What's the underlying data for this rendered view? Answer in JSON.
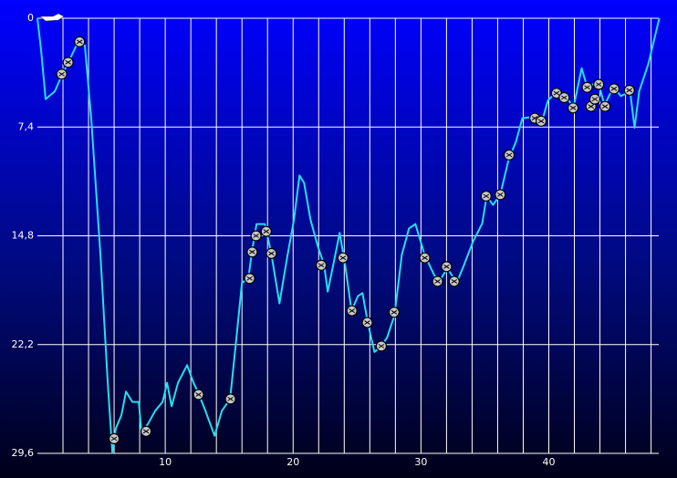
{
  "chart_data": {
    "type": "line",
    "color": "#22e0f0",
    "marker_color": "#c8c8c8",
    "grid": true,
    "y_inverted": true,
    "xlim": [
      0,
      48.6
    ],
    "ylim": [
      0,
      29.6
    ],
    "xticks": [
      10,
      20,
      30,
      40
    ],
    "xgrid": [
      2,
      4,
      6,
      8,
      10,
      12,
      14,
      16,
      18,
      20,
      22,
      24,
      26,
      28,
      30,
      32,
      34,
      36,
      38,
      40,
      42,
      44,
      46,
      48
    ],
    "yticks": [
      0,
      {
        "value": 7.4,
        "label": "7,4"
      },
      {
        "value": 14.8,
        "label": "14,8"
      },
      {
        "value": 22.2,
        "label": "22,2"
      },
      {
        "value": 29.6,
        "label": "29,6"
      }
    ],
    "x": [
      0,
      0.29,
      0.64,
      1.36,
      1.93,
      2.43,
      3.21,
      3.71,
      4.21,
      4.93,
      5.5,
      5.86,
      6.14,
      6.57,
      6.93,
      7.43,
      7.93,
      8.14,
      8.64,
      9.21,
      9.79,
      10.14,
      10.5,
      11.0,
      11.71,
      12.21,
      12.64,
      13.14,
      13.86,
      14.43,
      15.07,
      15.5,
      16.0,
      16.5,
      16.79,
      17.14,
      17.79,
      18.29,
      18.93,
      19.57,
      20.07,
      20.5,
      20.86,
      21.36,
      21.93,
      22.43,
      22.71,
      23.14,
      23.64,
      24.07,
      24.57,
      25.07,
      25.43,
      25.86,
      26.36,
      26.93,
      27.36,
      27.93,
      28.5,
      29.07,
      29.57,
      30.29,
      31.0,
      31.36,
      32.07,
      32.79,
      33.36,
      34.07,
      34.79,
      35.14,
      35.64,
      36.21,
      36.86,
      37.43,
      37.93,
      38.86,
      39.57,
      39.93,
      40.64,
      41.36,
      41.93,
      42.57,
      43.0,
      43.86,
      44.36,
      45.07,
      45.64,
      46.36,
      46.71,
      47.07,
      47.79,
      48.64
    ],
    "values": [
      0,
      2.2,
      5.5,
      4.97,
      3.85,
      2.98,
      1.55,
      1.86,
      6.83,
      16.1,
      24.8,
      29.5,
      27.9,
      27.0,
      25.4,
      26.1,
      26.1,
      28.2,
      27.6,
      26.7,
      26.1,
      24.8,
      26.4,
      24.8,
      23.6,
      24.8,
      25.6,
      26.7,
      28.4,
      26.7,
      25.9,
      22.3,
      18.0,
      17.7,
      15.8,
      14.0,
      14.0,
      16.0,
      19.4,
      16.1,
      13.7,
      10.7,
      11.2,
      13.7,
      15.5,
      16.8,
      18.6,
      16.8,
      14.6,
      16.8,
      19.9,
      18.9,
      18.7,
      20.8,
      22.7,
      22.3,
      21.7,
      20.2,
      16.1,
      14.3,
      14.0,
      16.1,
      17.4,
      18.0,
      17.0,
      18.0,
      16.8,
      15.2,
      13.97,
      12.1,
      12.7,
      11.98,
      9.6,
      8.4,
      6.8,
      6.7,
      6.7,
      5.6,
      4.97,
      5.3,
      6.1,
      3.4,
      4.66,
      4.35,
      5.9,
      4.66,
      5.3,
      4.97,
      7.45,
      4.97,
      3.1,
      0
    ],
    "events": {
      "x": [
        1.9,
        2.4,
        3.3,
        6.0,
        8.5,
        12.6,
        15.1,
        16.6,
        16.8,
        17.1,
        17.9,
        18.3,
        22.2,
        23.9,
        24.6,
        25.8,
        26.9,
        27.9,
        30.3,
        31.3,
        32.0,
        32.6,
        35.1,
        36.2,
        36.9,
        38.9,
        39.4,
        40.6,
        41.2,
        41.9,
        43.0,
        43.9,
        43.3,
        43.6,
        44.4,
        45.1,
        46.3
      ],
      "values": [
        3.8,
        3.0,
        1.6,
        28.6,
        28.1,
        25.6,
        25.9,
        17.7,
        15.9,
        14.8,
        14.5,
        16.0,
        16.8,
        16.3,
        19.9,
        20.7,
        22.3,
        20.0,
        16.3,
        17.9,
        16.9,
        17.9,
        12.1,
        12.0,
        9.3,
        6.8,
        7.0,
        5.1,
        5.4,
        6.1,
        4.7,
        4.5,
        6.0,
        5.5,
        6.0,
        4.8,
        4.9
      ]
    }
  }
}
